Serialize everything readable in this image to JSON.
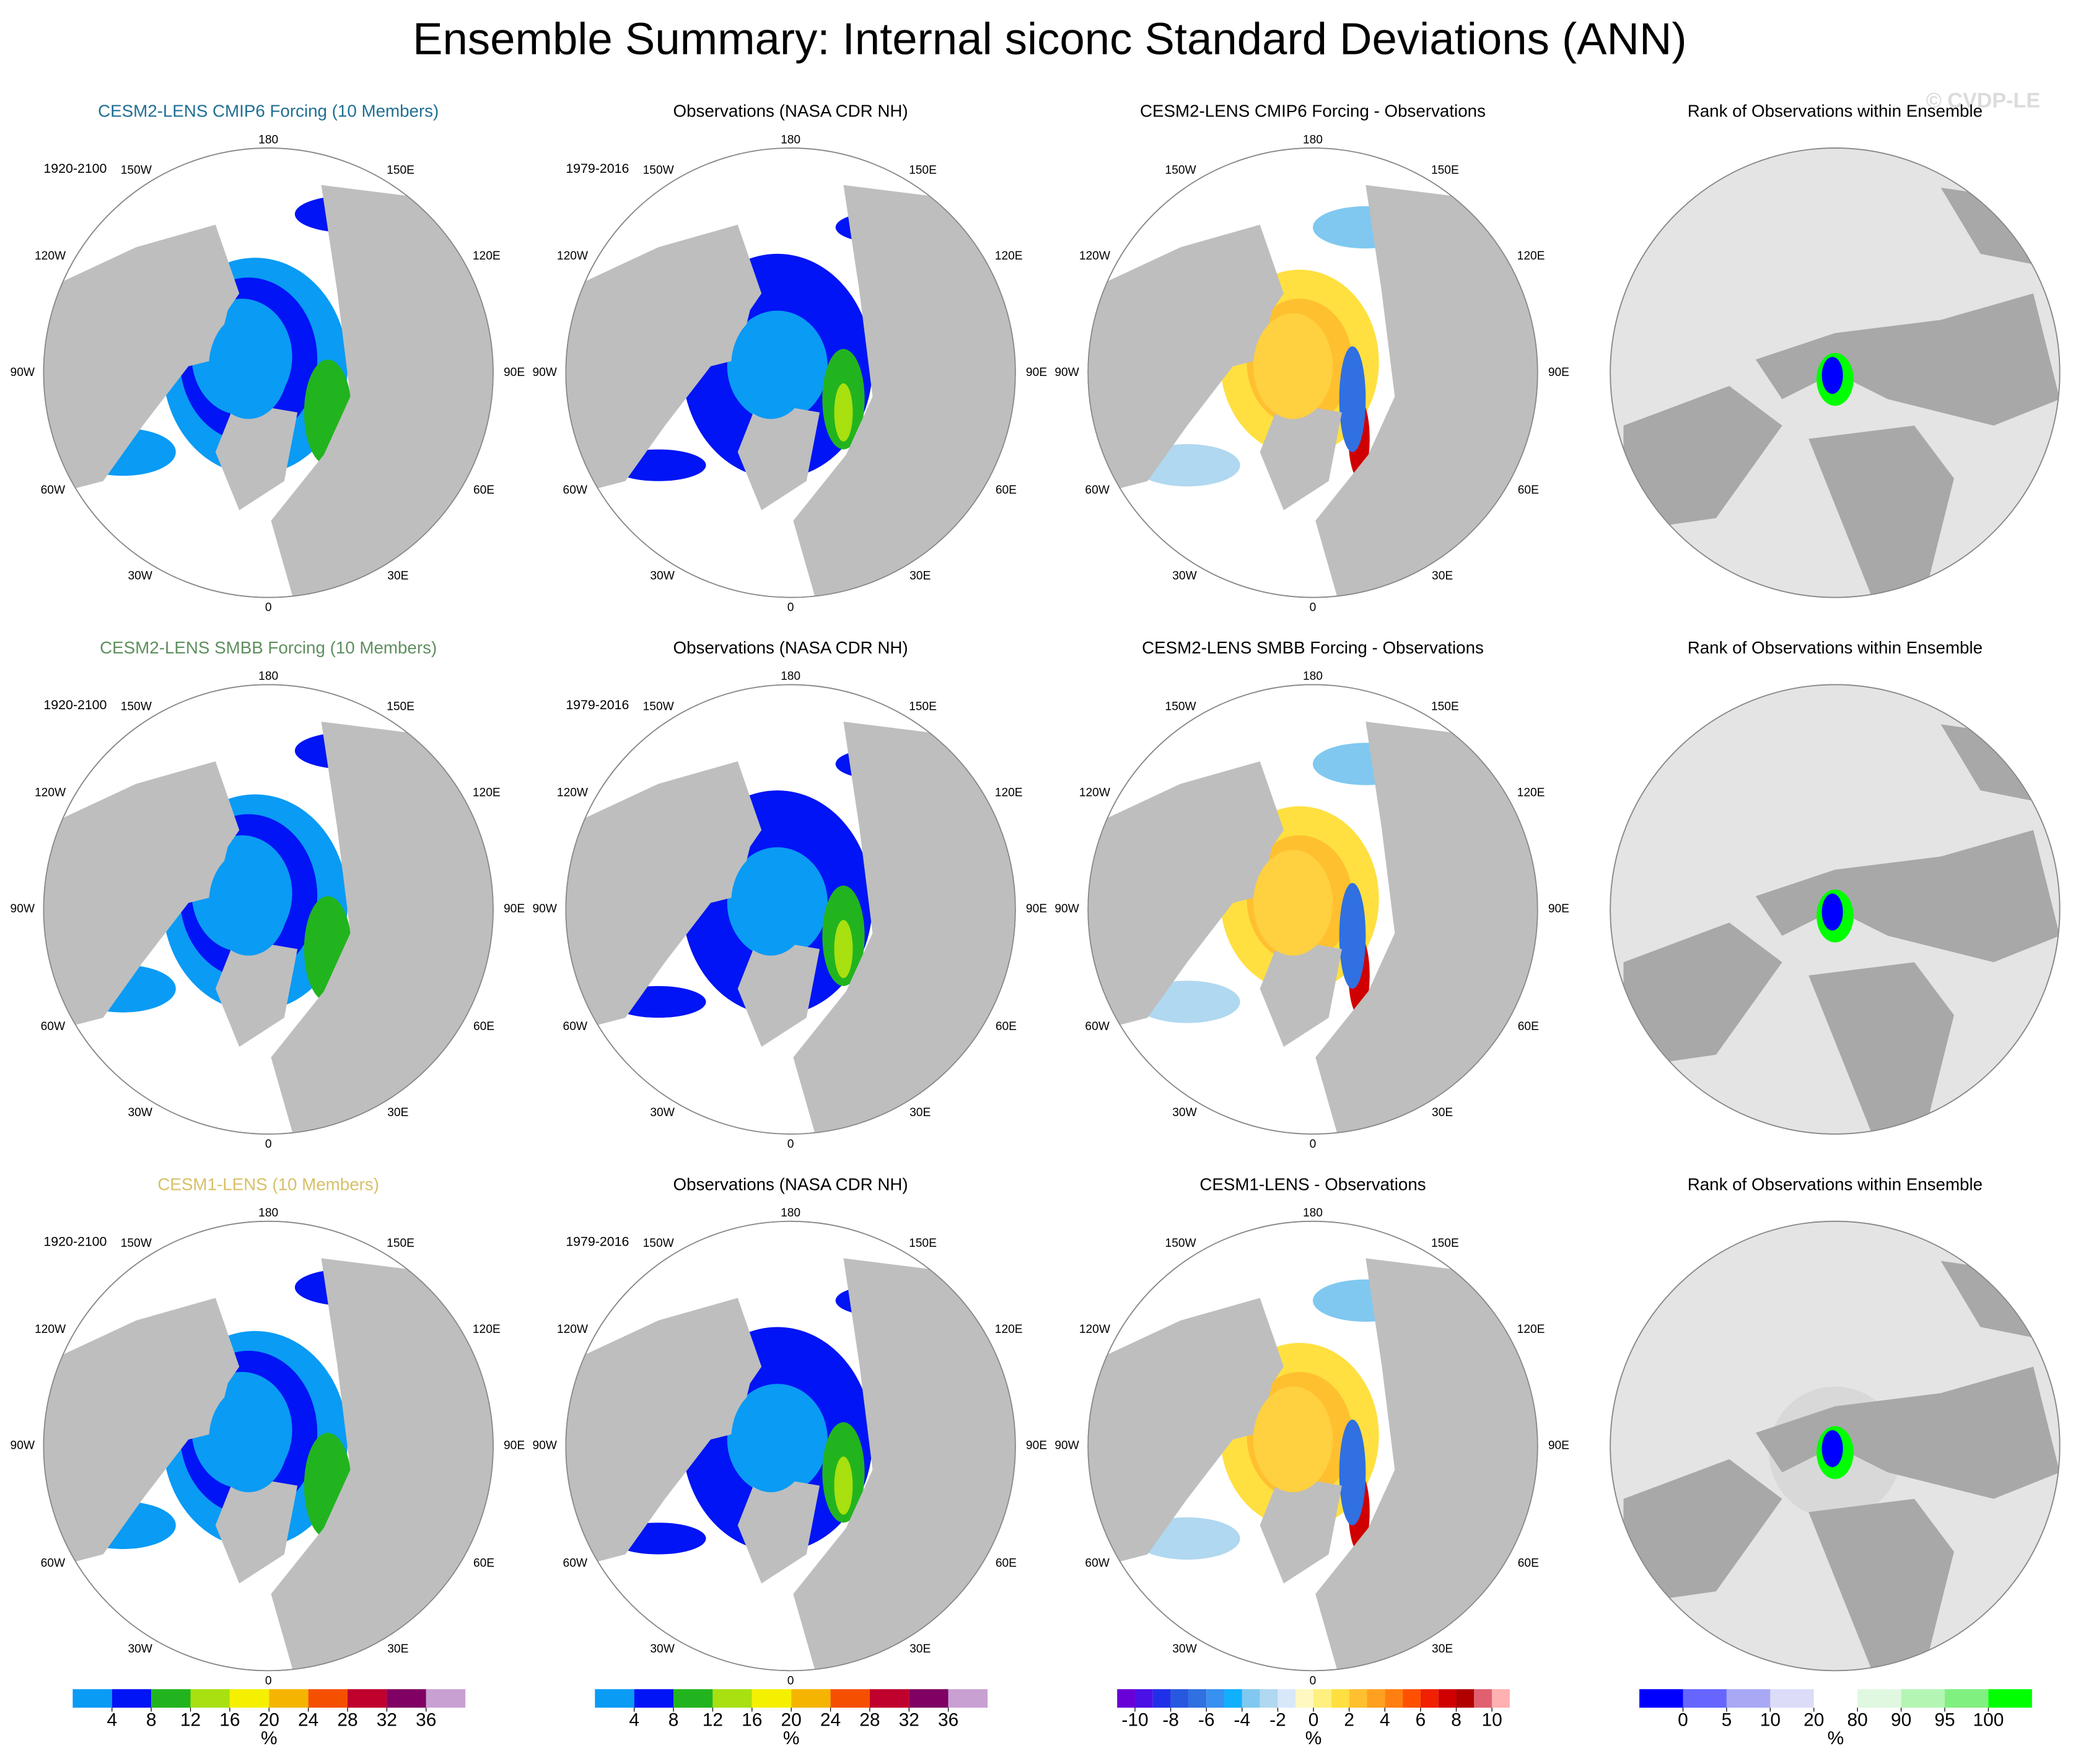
{
  "title": "Ensemble Summary: Internal siconc Standard Deviations (ANN)",
  "watermark": "© CVDP-LE",
  "longitude_labels": [
    "180",
    "150W",
    "150E",
    "120W",
    "120E",
    "90W",
    "90E",
    "60W",
    "60E",
    "30W",
    "30E",
    "0"
  ],
  "rows": [
    {
      "panels": [
        {
          "title": "CESM2-LENS CMIP6 Forcing (10 Members)",
          "title_color": "#206f94",
          "period": "1920-2100"
        },
        {
          "title": "Observations (NASA CDR NH)",
          "period": "1979-2016"
        },
        {
          "title": "CESM2-LENS CMIP6 Forcing - Observations"
        },
        {
          "title": "Rank of Observations within Ensemble"
        }
      ]
    },
    {
      "panels": [
        {
          "title": "CESM2-LENS SMBB Forcing (10 Members)",
          "title_color": "#5f8f5f",
          "period": "1920-2100"
        },
        {
          "title": "Observations (NASA CDR NH)",
          "period": "1979-2016"
        },
        {
          "title": "CESM2-LENS SMBB Forcing - Observations"
        },
        {
          "title": "Rank of Observations within Ensemble"
        }
      ]
    },
    {
      "panels": [
        {
          "title": "CESM1-LENS (10 Members)",
          "title_color": "#d8c068",
          "period": "1920-2100"
        },
        {
          "title": "Observations (NASA CDR NH)",
          "period": "1979-2016"
        },
        {
          "title": "CESM1-LENS - Observations"
        },
        {
          "title": "Rank of Observations within Ensemble"
        }
      ]
    }
  ],
  "colorbars": [
    {
      "ticks": [
        4,
        8,
        12,
        16,
        20,
        24,
        28,
        32,
        36
      ],
      "unit": "%",
      "colors": [
        "#0a9bf5",
        "#0014f5",
        "#22b41e",
        "#a8e010",
        "#f5f000",
        "#f5b400",
        "#f55000",
        "#c0002d",
        "#800064",
        "#c8a0d2"
      ]
    },
    {
      "ticks": [
        4,
        8,
        12,
        16,
        20,
        24,
        28,
        32,
        36
      ],
      "unit": "%",
      "colors": [
        "#0a9bf5",
        "#0014f5",
        "#22b41e",
        "#a8e010",
        "#f5f000",
        "#f5b400",
        "#f55000",
        "#c0002d",
        "#800064",
        "#c8a0d2"
      ]
    },
    {
      "ticks": [
        -10,
        -8,
        -6,
        -4,
        -2,
        0,
        2,
        4,
        6,
        8,
        10
      ],
      "unit": "%",
      "colors": [
        "#6a00d8",
        "#4b10e6",
        "#2030e8",
        "#2858e0",
        "#3070e0",
        "#3890f0",
        "#10b0ff",
        "#80c8f0",
        "#b0d8f0",
        "#d8e8f8",
        "#fff8c0",
        "#fff080",
        "#ffe040",
        "#ffc030",
        "#ffa020",
        "#ff8010",
        "#ff5000",
        "#f02000",
        "#d00000",
        "#b00000",
        "#e06070",
        "#ffb0b0"
      ]
    },
    {
      "ticks": [
        0,
        5,
        10,
        20,
        80,
        90,
        95,
        100
      ],
      "unit": "%",
      "colors": [
        "#0000ff",
        "#6666ff",
        "#a8a8f5",
        "#dcdcf8",
        "#ffffff",
        "#e0f8e0",
        "#b4f5b4",
        "#80f080",
        "#00ff00"
      ]
    }
  ]
}
